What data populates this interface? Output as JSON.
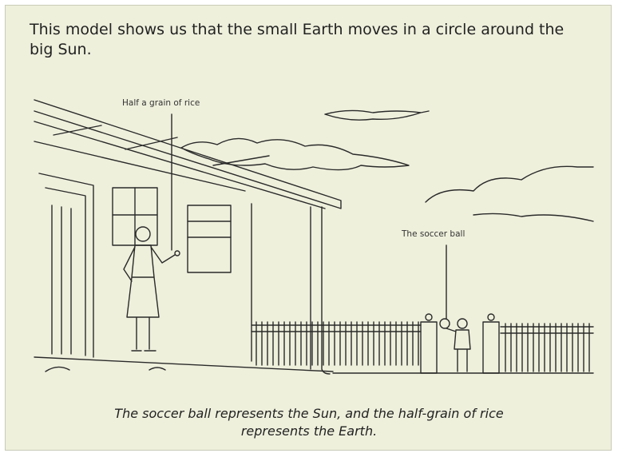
{
  "intro": "This model shows us that the small Earth moves in a circle around the big Sun.",
  "labels": {
    "rice": "Half a grain of rice",
    "ball": "The soccer ball"
  },
  "caption": "The soccer ball represents the Sun, and the half-grain of rice represents the Earth."
}
